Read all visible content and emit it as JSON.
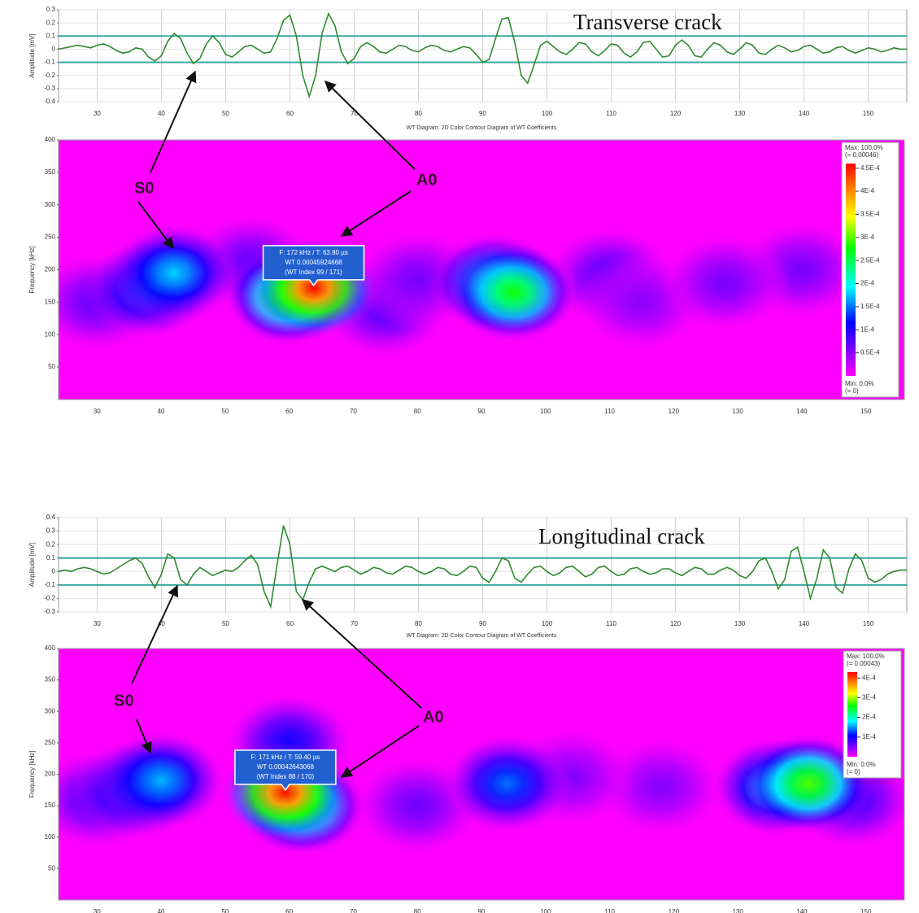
{
  "chart_data": [
    {
      "type": "line",
      "title": "Transverse crack",
      "y_label": "Amplitude [mV]",
      "xlim": [
        24,
        156
      ],
      "xticks": [
        30,
        40,
        50,
        60,
        70,
        80,
        90,
        100,
        110,
        120,
        130,
        140,
        150
      ],
      "ylim": [
        -0.4,
        0.3
      ],
      "yticks": [
        0.3,
        0.2,
        0.1,
        0,
        -0.1,
        -0.2,
        -0.3,
        -0.4
      ],
      "grid": true,
      "hlines": [
        0.1,
        -0.1
      ],
      "hline_color": "#3aa7a3",
      "x": [
        24,
        25,
        26,
        27,
        28,
        29,
        30,
        31,
        32,
        33,
        34,
        35,
        36,
        37,
        38,
        39,
        40,
        41,
        42,
        43,
        44,
        45,
        46,
        47,
        48,
        49,
        50,
        51,
        52,
        53,
        54,
        55,
        56,
        57,
        58,
        59,
        60,
        61,
        62,
        63,
        64,
        65,
        66,
        67,
        68,
        69,
        70,
        71,
        72,
        73,
        74,
        75,
        76,
        77,
        78,
        79,
        80,
        81,
        82,
        83,
        84,
        85,
        86,
        87,
        88,
        89,
        90,
        91,
        92,
        93,
        94,
        95,
        96,
        97,
        98,
        99,
        100,
        101,
        102,
        103,
        104,
        105,
        106,
        107,
        108,
        109,
        110,
        111,
        112,
        113,
        114,
        115,
        116,
        117,
        118,
        119,
        120,
        121,
        122,
        123,
        124,
        125,
        126,
        127,
        128,
        129,
        130,
        131,
        132,
        133,
        134,
        135,
        136,
        137,
        138,
        139,
        140,
        141,
        142,
        143,
        144,
        145,
        146,
        147,
        148,
        149,
        150,
        151,
        152,
        153,
        154,
        155,
        156
      ],
      "series": [
        {
          "color": "#2f8a2f",
          "values": [
            0,
            0.01,
            0.02,
            0.03,
            0.02,
            0.01,
            0.03,
            0.04,
            0.02,
            -0.01,
            -0.03,
            -0.02,
            0.01,
            0,
            -0.06,
            -0.09,
            -0.05,
            0.06,
            0.12,
            0.08,
            -0.03,
            -0.11,
            -0.07,
            0.04,
            0.1,
            0.05,
            -0.04,
            -0.06,
            -0.02,
            0.02,
            0.03,
            0,
            -0.03,
            -0.02,
            0.08,
            0.22,
            0.26,
            0.1,
            -0.2,
            -0.36,
            -0.2,
            0.12,
            0.27,
            0.18,
            -0.02,
            -0.11,
            -0.07,
            0.02,
            0.05,
            0.02,
            -0.02,
            -0.03,
            0,
            0.03,
            0.02,
            -0.01,
            -0.02,
            0.01,
            0.03,
            0.02,
            -0.01,
            -0.02,
            0,
            0.02,
            0.01,
            -0.04,
            -0.1,
            -0.08,
            0.08,
            0.23,
            0.24,
            0.05,
            -0.2,
            -0.26,
            -0.12,
            0.03,
            0.06,
            0.02,
            -0.02,
            -0.04,
            0,
            0.05,
            0.04,
            -0.02,
            -0.05,
            -0.01,
            0.04,
            0.03,
            -0.03,
            -0.06,
            -0.02,
            0.05,
            0.06,
            0,
            -0.06,
            -0.05,
            0.03,
            0.07,
            0.03,
            -0.05,
            -0.06,
            0,
            0.05,
            0.03,
            -0.02,
            -0.04,
            0,
            0.05,
            0.03,
            -0.03,
            -0.04,
            0,
            0.03,
            0.01,
            -0.02,
            -0.01,
            0.02,
            0.03,
            0,
            -0.03,
            -0.02,
            0.01,
            0.02,
            -0.01,
            -0.03,
            -0.01,
            0.01,
            0,
            -0.02,
            -0.01,
            0.01,
            0,
            0
          ]
        }
      ]
    },
    {
      "type": "contour",
      "title": "WT Diagram: 2D Color Contour Diagram of WT Coefficients",
      "y_label": "Frequency [kHz]",
      "xlim": [
        24,
        156
      ],
      "xticks": [
        30,
        40,
        50,
        60,
        70,
        80,
        90,
        100,
        110,
        120,
        130,
        140,
        150
      ],
      "ylim": [
        0,
        400
      ],
      "yticks": [
        50,
        100,
        150,
        200,
        250,
        300,
        350,
        400
      ],
      "clim": [
        0,
        0.00046
      ],
      "colorbar_ticks": [
        {
          "value": 0.00045,
          "label": "4.5E-4"
        },
        {
          "value": 0.0004,
          "label": "4E-4"
        },
        {
          "value": 0.00035,
          "label": "3.5E-4"
        },
        {
          "value": 0.0003,
          "label": "3E-4"
        },
        {
          "value": 0.00025,
          "label": "2.5E-4"
        },
        {
          "value": 0.0002,
          "label": "2E-4"
        },
        {
          "value": 0.00015,
          "label": "1.5E-4"
        },
        {
          "value": 0.0001,
          "label": "1E-4"
        },
        {
          "value": 5e-05,
          "label": "0.5E-4"
        }
      ],
      "colorbar_max": [
        "Max: 100.0%",
        "(= 0.00046)"
      ],
      "colorbar_min": [
        "Min: 0.0%",
        "(= 0)"
      ],
      "peaks": [
        {
          "t": 63.8,
          "f": 172,
          "value": 0.000459
        },
        {
          "t": 60,
          "f": 160,
          "value": 0.0003
        },
        {
          "t": 42,
          "f": 195,
          "value": 0.00018
        },
        {
          "t": 38,
          "f": 170,
          "value": 0.00015
        },
        {
          "t": 95,
          "f": 165,
          "value": 0.00028
        },
        {
          "t": 92,
          "f": 180,
          "value": 0.00022
        },
        {
          "t": 54,
          "f": 210,
          "value": 7e-05
        },
        {
          "t": 80,
          "f": 185,
          "value": 6e-05
        },
        {
          "t": 128,
          "f": 180,
          "value": 6e-05
        },
        {
          "t": 115,
          "f": 150,
          "value": 5e-05
        },
        {
          "t": 75,
          "f": 140,
          "value": 8e-05
        },
        {
          "t": 110,
          "f": 190,
          "value": 8e-05
        },
        {
          "t": 140,
          "f": 200,
          "value": 6e-05
        },
        {
          "t": 30,
          "f": 150,
          "value": 7e-05
        }
      ],
      "tooltip": [
        "F: 172 kHz / T: 63.80 µs",
        "WT 0.00045924668",
        "(WT Index 99 / 171)"
      ],
      "annotations": [
        "S0",
        "A0"
      ]
    },
    {
      "type": "line",
      "title": "Longitudinal crack",
      "y_label": "Amplitude [mV]",
      "xlim": [
        24,
        156
      ],
      "xticks": [
        30,
        40,
        50,
        60,
        70,
        80,
        90,
        100,
        110,
        120,
        130,
        140,
        150
      ],
      "ylim": [
        -0.3,
        0.4
      ],
      "yticks": [
        0.4,
        0.3,
        0.2,
        0.1,
        0,
        -0.1,
        -0.2,
        -0.3
      ],
      "grid": true,
      "hlines": [
        0.1,
        -0.1
      ],
      "hline_color": "#3aa7a3",
      "x": [
        24,
        25,
        26,
        27,
        28,
        29,
        30,
        31,
        32,
        33,
        34,
        35,
        36,
        37,
        38,
        39,
        40,
        41,
        42,
        43,
        44,
        45,
        46,
        47,
        48,
        49,
        50,
        51,
        52,
        53,
        54,
        55,
        56,
        57,
        58,
        59,
        60,
        61,
        62,
        63,
        64,
        65,
        66,
        67,
        68,
        69,
        70,
        71,
        72,
        73,
        74,
        75,
        76,
        77,
        78,
        79,
        80,
        81,
        82,
        83,
        84,
        85,
        86,
        87,
        88,
        89,
        90,
        91,
        92,
        93,
        94,
        95,
        96,
        97,
        98,
        99,
        100,
        101,
        102,
        103,
        104,
        105,
        106,
        107,
        108,
        109,
        110,
        111,
        112,
        113,
        114,
        115,
        116,
        117,
        118,
        119,
        120,
        121,
        122,
        123,
        124,
        125,
        126,
        127,
        128,
        129,
        130,
        131,
        132,
        133,
        134,
        135,
        136,
        137,
        138,
        139,
        140,
        141,
        142,
        143,
        144,
        145,
        146,
        147,
        148,
        149,
        150,
        151,
        152,
        153,
        154,
        155,
        156
      ],
      "series": [
        {
          "color": "#2f8a2f",
          "values": [
            0,
            0.01,
            0,
            0.02,
            0.03,
            0.02,
            0,
            -0.02,
            -0.01,
            0.02,
            0.05,
            0.08,
            0.1,
            0.06,
            -0.04,
            -0.12,
            -0.02,
            0.13,
            0.1,
            -0.06,
            -0.1,
            -0.02,
            0.03,
            0,
            -0.03,
            -0.01,
            0.01,
            0,
            0.03,
            0.08,
            0.12,
            0.05,
            -0.15,
            -0.26,
            0.05,
            0.34,
            0.2,
            -0.15,
            -0.21,
            -0.08,
            0.02,
            0.04,
            0.02,
            0,
            0.03,
            0.04,
            0.01,
            -0.02,
            0,
            0.03,
            0.02,
            -0.01,
            -0.02,
            0.01,
            0.04,
            0.03,
            0,
            -0.02,
            0,
            0.03,
            0.02,
            -0.02,
            -0.03,
            0,
            0.04,
            0.03,
            -0.05,
            -0.08,
            0,
            0.1,
            0.08,
            -0.05,
            -0.08,
            -0.02,
            0.03,
            0.04,
            0,
            -0.03,
            -0.01,
            0.03,
            0.04,
            0,
            -0.04,
            -0.02,
            0.03,
            0.04,
            0,
            -0.03,
            -0.02,
            0.02,
            0.03,
            0,
            -0.02,
            -0.01,
            0.02,
            0.02,
            -0.01,
            -0.03,
            0,
            0.03,
            0.02,
            -0.02,
            -0.02,
            0.01,
            0.03,
            0.01,
            -0.03,
            -0.05,
            0,
            0.08,
            0.1,
            0,
            -0.13,
            -0.06,
            0.15,
            0.18,
            0,
            -0.2,
            -0.05,
            0.16,
            0.1,
            -0.12,
            -0.16,
            0.02,
            0.13,
            0.08,
            -0.05,
            -0.08,
            -0.06,
            -0.02,
            0,
            0.01,
            0.01
          ]
        }
      ]
    },
    {
      "type": "contour",
      "title": "WT Diagram: 2D Color Contour Diagram of WT Coefficients",
      "y_label": "Frequency [kHz]",
      "xlim": [
        24,
        156
      ],
      "xticks": [
        30,
        40,
        50,
        60,
        70,
        80,
        90,
        100,
        110,
        120,
        130,
        140,
        150
      ],
      "ylim": [
        0,
        400
      ],
      "yticks": [
        50,
        100,
        150,
        200,
        250,
        300,
        350,
        400
      ],
      "clim": [
        0,
        0.00043
      ],
      "colorbar_ticks": [
        {
          "value": 0.0004,
          "label": "4E-4"
        },
        {
          "value": 0.0003,
          "label": "3E-4"
        },
        {
          "value": 0.0002,
          "label": "2E-4"
        },
        {
          "value": 0.0001,
          "label": "1E-4"
        }
      ],
      "colorbar_max": [
        "Max: 100.0%",
        "(= 0.00043)"
      ],
      "colorbar_min": [
        "Min: 0.0%",
        "(= 0)"
      ],
      "peaks": [
        {
          "t": 59.4,
          "f": 171,
          "value": 0.000426
        },
        {
          "t": 62,
          "f": 150,
          "value": 0.00026
        },
        {
          "t": 40,
          "f": 190,
          "value": 0.00016
        },
        {
          "t": 36,
          "f": 175,
          "value": 0.00013
        },
        {
          "t": 94,
          "f": 185,
          "value": 0.00014
        },
        {
          "t": 141,
          "f": 185,
          "value": 0.00028
        },
        {
          "t": 136,
          "f": 180,
          "value": 0.00018
        },
        {
          "t": 104,
          "f": 195,
          "value": 5e-05
        },
        {
          "t": 80,
          "f": 150,
          "value": 6e-05
        },
        {
          "t": 118,
          "f": 180,
          "value": 5e-05
        },
        {
          "t": 30,
          "f": 160,
          "value": 8e-05
        },
        {
          "t": 148,
          "f": 160,
          "value": 8e-05
        },
        {
          "t": 60,
          "f": 250,
          "value": 0.0001
        }
      ],
      "tooltip": [
        "F: 171 kHz / T: 59.40 µs",
        "WT 0.00042643068",
        "(WT Index 88 / 170)"
      ],
      "annotations": [
        "S0",
        "A0"
      ]
    }
  ]
}
